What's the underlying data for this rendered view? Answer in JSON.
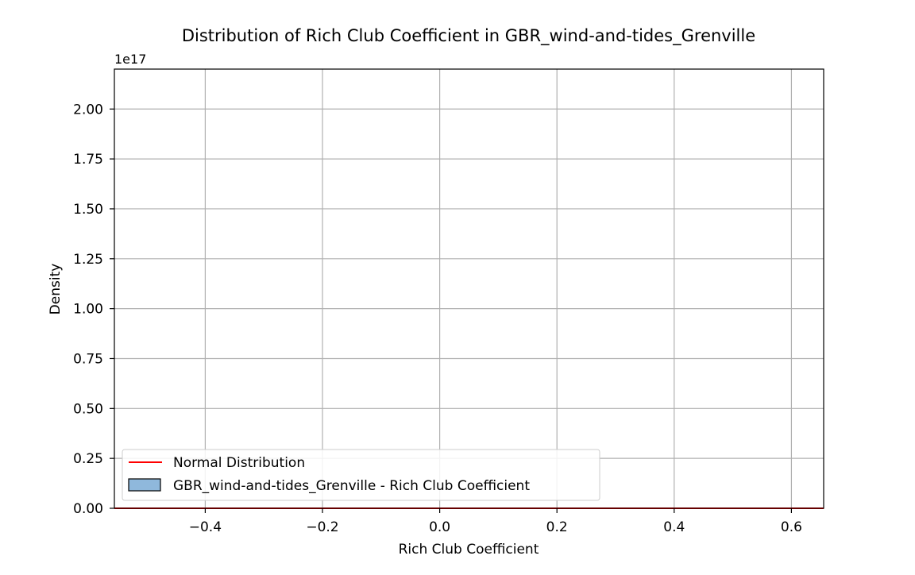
{
  "chart_data": {
    "type": "histogram",
    "title": "Distribution of Rich Club Coefficient in GBR_wind-and-tides_Grenville",
    "xlabel": "Rich Club Coefficient",
    "ylabel": "Density",
    "y_offset_text": "1e17",
    "xlim": [
      -0.555,
      0.655
    ],
    "ylim": [
      0,
      2.2
    ],
    "x_ticks": [
      -0.4,
      -0.2,
      0.0,
      0.2,
      0.4,
      0.6
    ],
    "x_tick_labels": [
      "−0.4",
      "−0.2",
      "0.0",
      "0.2",
      "0.4",
      "0.6"
    ],
    "y_ticks": [
      0.0,
      0.25,
      0.5,
      0.75,
      1.0,
      1.25,
      1.5,
      1.75,
      2.0
    ],
    "y_tick_labels": [
      "0.00",
      "0.25",
      "0.50",
      "0.75",
      "1.00",
      "1.25",
      "1.50",
      "1.75",
      "2.00"
    ],
    "grid": true,
    "legend_position": "lower-left",
    "series": [
      {
        "name": "Normal Distribution",
        "kind": "line",
        "color": "#ff0000",
        "x": [
          -0.555,
          0.655
        ],
        "y": [
          0,
          0
        ]
      },
      {
        "name": "GBR_wind-and-tides_Grenville - Rich Club Coefficient",
        "kind": "bar",
        "color": "#8fb8dc",
        "edgecolor": "#000000",
        "values": []
      }
    ]
  }
}
